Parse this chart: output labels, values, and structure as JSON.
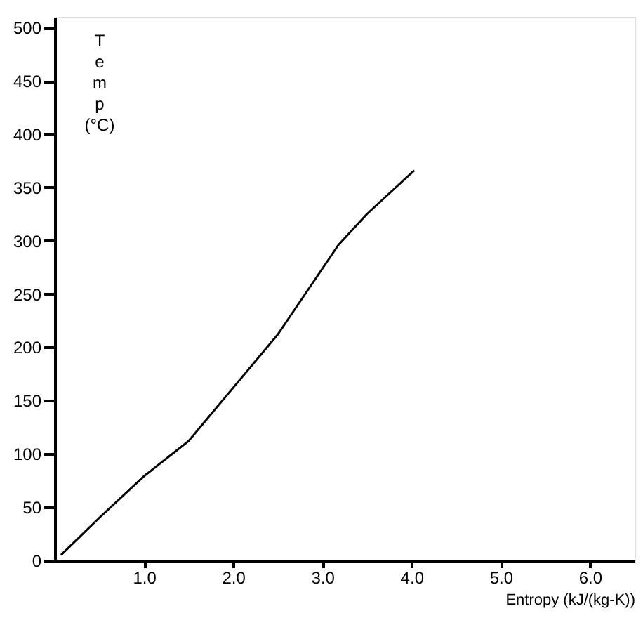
{
  "chart_data": {
    "type": "line",
    "xlabel": "Entropy (kJ/(kg-K))",
    "ylabel": "Temp (°C)",
    "x": [
      0.07,
      0.5,
      1.0,
      1.5,
      2.0,
      2.5,
      3.18,
      3.5,
      4.03
    ],
    "series": [
      {
        "color": "#000000",
        "values": [
          5,
          40,
          79,
          112,
          162,
          212,
          296,
          325,
          366
        ]
      }
    ],
    "xlim": [
      0,
      6.5
    ],
    "ylim": [
      0,
      510
    ],
    "xticks": [
      {
        "value": 1,
        "label": "1.0"
      },
      {
        "value": 2,
        "label": "2.0"
      },
      {
        "value": 3,
        "label": "3.0"
      },
      {
        "value": 4,
        "label": "4.0"
      },
      {
        "value": 5,
        "label": "5.0"
      },
      {
        "value": 6,
        "label": "6.0"
      }
    ],
    "yticks": [
      0,
      50,
      100,
      150,
      200,
      250,
      300,
      350,
      400,
      450,
      500
    ],
    "grid": false,
    "marker": "none",
    "line_style": "solid"
  }
}
